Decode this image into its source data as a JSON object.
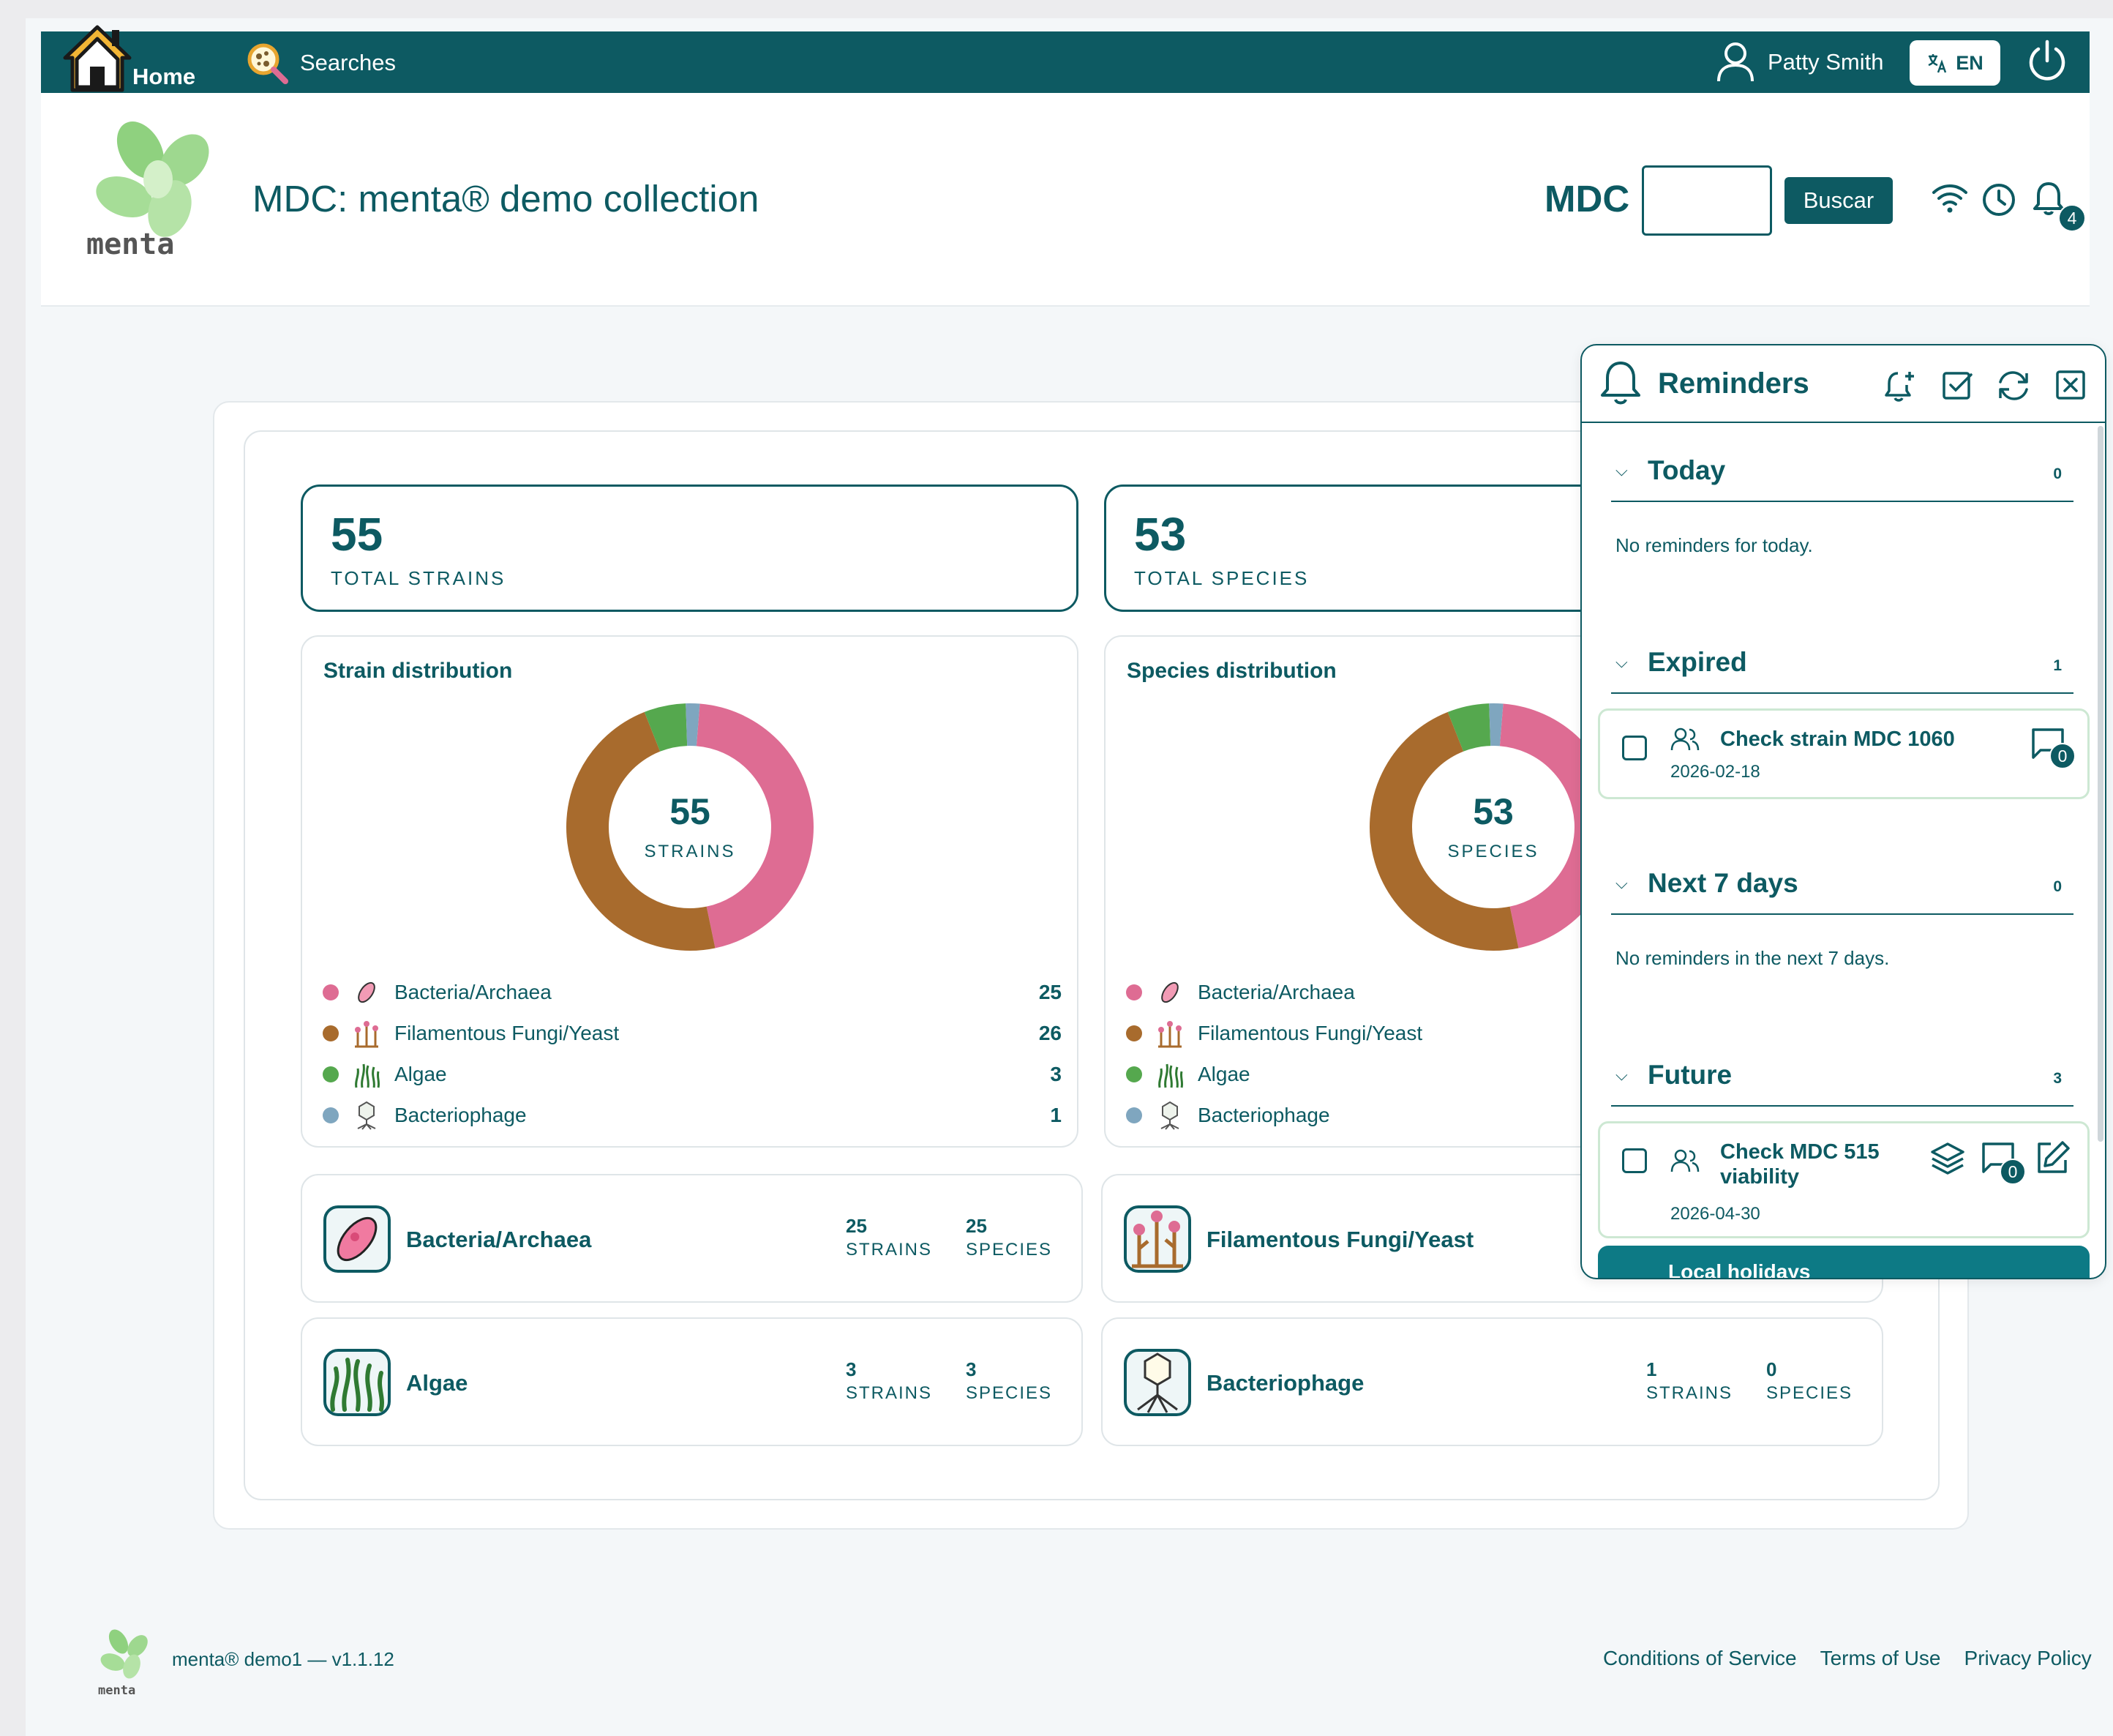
{
  "nav": {
    "home": "Home",
    "searches": "Searches",
    "user": "Patty Smith",
    "lang": "EN"
  },
  "header": {
    "logo_text": "menta",
    "title": "MDC: menta® demo collection",
    "prefix": "MDC",
    "search_button": "Buscar",
    "notif_count": "4"
  },
  "stats": {
    "strains": {
      "value": "55",
      "label": "TOTAL STRAINS"
    },
    "species": {
      "value": "53",
      "label": "TOTAL SPECIES"
    }
  },
  "strain_dist": {
    "title": "Strain distribution",
    "center_value": "55",
    "center_label": "STRAINS",
    "items": [
      {
        "label": "Bacteria/Archaea",
        "value": "25",
        "color": "#de6c93"
      },
      {
        "label": "Filamentous Fungi/Yeast",
        "value": "26",
        "color": "#a86b2d"
      },
      {
        "label": "Algae",
        "value": "3",
        "color": "#55a84e"
      },
      {
        "label": "Bacteriophage",
        "value": "1",
        "color": "#7fa6bf"
      }
    ]
  },
  "species_dist": {
    "title": "Species distribution",
    "center_value": "53",
    "center_label": "SPECIES",
    "items": [
      {
        "label": "Bacteria/Archaea",
        "color": "#de6c93"
      },
      {
        "label": "Filamentous Fungi/Yeast",
        "color": "#a86b2d"
      },
      {
        "label": "Algae",
        "color": "#55a84e"
      },
      {
        "label": "Bacteriophage",
        "color": "#7fa6bf"
      }
    ]
  },
  "categories": [
    {
      "name": "Bacteria/Archaea",
      "strains": "25",
      "strains_label": "STRAINS",
      "species": "25",
      "species_label": "SPECIES"
    },
    {
      "name": "Filamentous Fungi/Yeast"
    },
    {
      "name": "Algae",
      "strains": "3",
      "strains_label": "STRAINS",
      "species": "3",
      "species_label": "SPECIES"
    },
    {
      "name": "Bacteriophage",
      "strains": "1",
      "strains_label": "STRAINS",
      "species": "0",
      "species_label": "SPECIES"
    }
  ],
  "footer": {
    "version": "menta® demo1  — v1.1.12",
    "logo_text": "menta",
    "links": [
      "Conditions of Service",
      "Terms of Use",
      "Privacy Policy"
    ]
  },
  "reminders": {
    "title": "Reminders",
    "sections": {
      "today": {
        "name": "Today",
        "count": "0",
        "empty": "No reminders for today."
      },
      "expired": {
        "name": "Expired",
        "count": "1"
      },
      "next7": {
        "name": "Next 7 days",
        "count": "0",
        "empty": "No reminders in the next 7 days."
      },
      "future": {
        "name": "Future",
        "count": "3"
      }
    },
    "items": [
      {
        "title": "Check strain MDC 1060",
        "date": "2026-02-18",
        "comments": "0"
      },
      {
        "title": "Check MDC 515 viability",
        "date": "2026-04-30",
        "comments": "0"
      },
      {
        "title": "Local holidays"
      }
    ]
  }
}
